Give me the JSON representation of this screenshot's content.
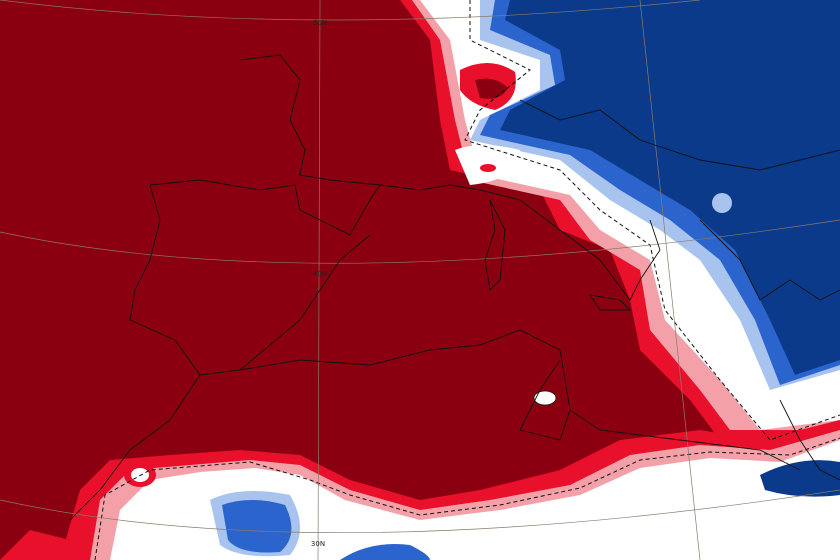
{
  "map": {
    "latitude_labels": [
      "50N",
      "40N",
      "30N"
    ]
  }
}
